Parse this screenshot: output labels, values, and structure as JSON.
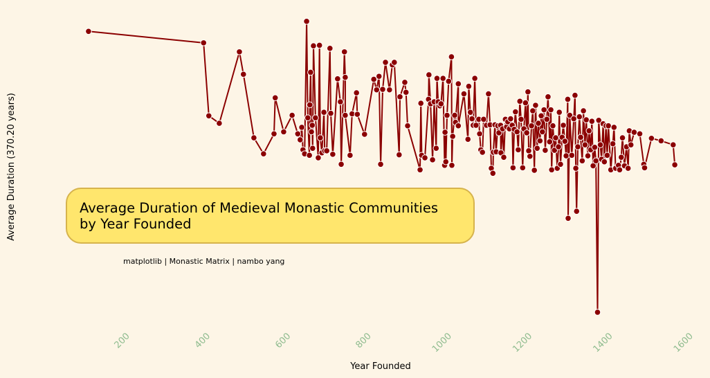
{
  "chart_data": {
    "type": "line",
    "title": "Average Duration of Medieval Monastic Communities\nby Year Founded",
    "source": "matplotlib | Monastic Matrix | nambo yang",
    "xlabel": "Year Founded",
    "ylabel": "Average Duration (370.20 years)",
    "color": "#8b0000",
    "tick_color": "#8fbc8f",
    "background": "#fdf5e6",
    "grid": false,
    "xlim": [
      66,
      1631
    ],
    "ylim": [
      -16.3,
      607
    ],
    "xticks": [
      200,
      400,
      600,
      800,
      1000,
      1200,
      1400,
      1600
    ],
    "x": [
      114,
      400,
      413,
      439,
      489,
      499,
      525,
      549,
      575,
      578,
      599,
      620,
      634,
      640,
      644,
      647,
      651,
      656,
      659,
      663,
      664,
      666,
      668,
      670,
      671,
      673,
      678,
      685,
      688,
      690,
      694,
      699,
      701,
      706,
      714,
      716,
      721,
      733,
      740,
      742,
      750,
      752,
      752,
      764,
      769,
      780,
      782,
      800,
      823,
      830,
      836,
      840,
      845,
      852,
      862,
      869,
      874,
      886,
      888,
      900,
      903,
      907,
      938,
      940,
      942,
      950,
      959,
      960,
      964,
      969,
      973,
      978,
      980,
      983,
      987,
      990,
      995,
      999,
      1000,
      1002,
      1005,
      1009,
      1016,
      1017,
      1019,
      1024,
      1026,
      1033,
      1033,
      1047,
      1057,
      1059,
      1063,
      1067,
      1070,
      1074,
      1077,
      1084,
      1086,
      1089,
      1093,
      1096,
      1103,
      1108,
      1112,
      1115,
      1119,
      1120,
      1124,
      1127,
      1131,
      1134,
      1138,
      1139,
      1143,
      1146,
      1150,
      1153,
      1156,
      1160,
      1163,
      1167,
      1169,
      1172,
      1175,
      1179,
      1182,
      1186,
      1189,
      1193,
      1196,
      1200,
      1203,
      1206,
      1208,
      1211,
      1215,
      1218,
      1222,
      1225,
      1229,
      1232,
      1236,
      1239,
      1242,
      1246,
      1249,
      1253,
      1256,
      1260,
      1263,
      1265,
      1268,
      1272,
      1275,
      1279,
      1282,
      1284,
      1287,
      1291,
      1294,
      1298,
      1301,
      1305,
      1306,
      1310,
      1315,
      1320,
      1323,
      1325,
      1327,
      1330,
      1334,
      1337,
      1341,
      1344,
      1348,
      1351,
      1355,
      1358,
      1362,
      1365,
      1368,
      1372,
      1375,
      1379,
      1382,
      1386,
      1389,
      1393,
      1396,
      1400,
      1403,
      1406,
      1412,
      1417,
      1420,
      1424,
      1431,
      1434,
      1438,
      1441,
      1446,
      1451,
      1455,
      1458,
      1462,
      1470,
      1484,
      1494,
      1496,
      1513,
      1537,
      1567,
      1571
    ],
    "values": [
      572,
      549,
      403,
      388,
      531,
      486,
      359,
      327,
      367,
      439,
      371,
      404,
      367,
      355,
      380,
      335,
      327,
      592,
      399,
      324,
      425,
      490,
      371,
      384,
      338,
      543,
      399,
      319,
      544,
      359,
      329,
      410,
      333,
      333,
      538,
      408,
      326,
      477,
      431,
      306,
      531,
      480,
      404,
      324,
      407,
      449,
      406,
      366,
      476,
      455,
      482,
      306,
      456,
      510,
      455,
      505,
      510,
      325,
      441,
      470,
      450,
      383,
      295,
      428,
      324,
      319,
      436,
      485,
      427,
      315,
      431,
      338,
      478,
      431,
      423,
      427,
      478,
      304,
      370,
      311,
      404,
      472,
      521,
      304,
      362,
      404,
      390,
      467,
      383,
      447,
      356,
      462,
      410,
      397,
      384,
      478,
      384,
      396,
      367,
      335,
      330,
      396,
      384,
      447,
      385,
      298,
      288,
      330,
      385,
      331,
      383,
      369,
      384,
      329,
      377,
      320,
      396,
      381,
      391,
      377,
      397,
      384,
      299,
      376,
      411,
      371,
      335,
      432,
      396,
      299,
      377,
      429,
      369,
      451,
      333,
      322,
      383,
      413,
      294,
      424,
      338,
      388,
      353,
      403,
      371,
      415,
      334,
      396,
      441,
      351,
      415,
      295,
      383,
      334,
      359,
      298,
      341,
      410,
      306,
      360,
      384,
      352,
      323,
      436,
      198,
      404,
      324,
      397,
      444,
      298,
      212,
      341,
      401,
      360,
      313,
      413,
      345,
      395,
      323,
      373,
      335,
      392,
      303,
      340,
      313,
      10,
      394,
      345,
      316,
      387,
      311,
      383,
      324,
      383,
      295,
      347,
      380,
      298,
      304,
      295,
      320,
      359,
      303,
      341,
      298,
      373,
      345,
      370,
      367,
      306,
      299,
      358,
      353,
      345,
      305
    ]
  }
}
